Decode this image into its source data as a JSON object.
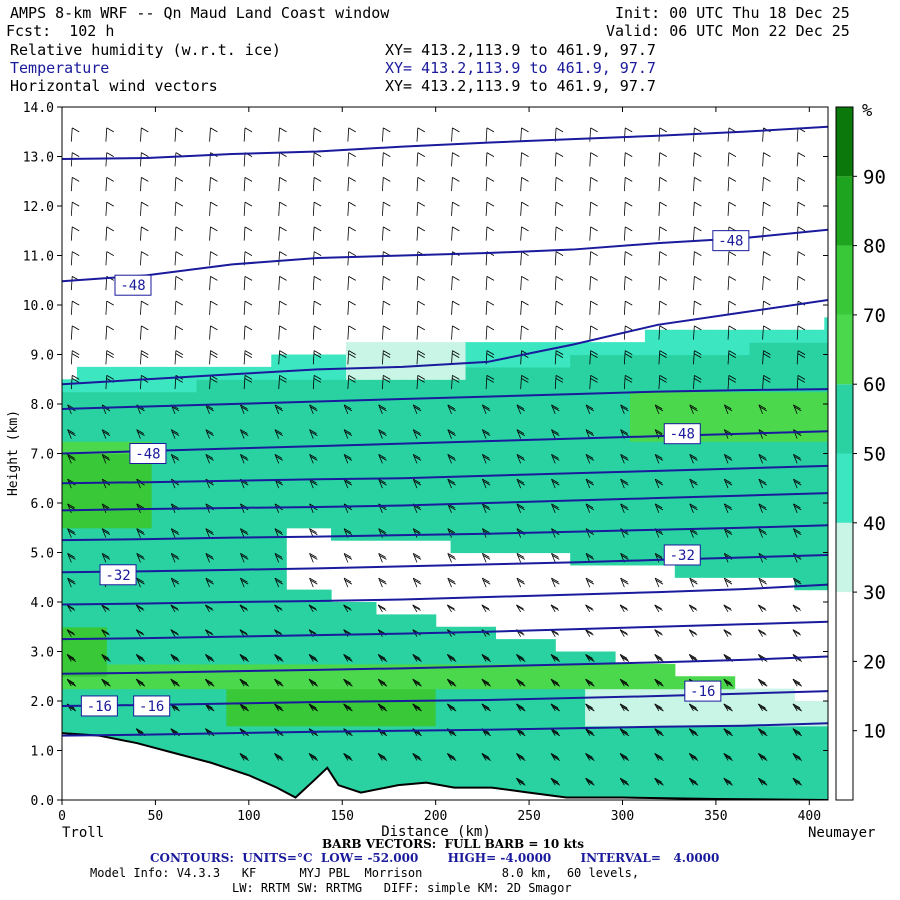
{
  "header": {
    "title": "AMPS 8-km WRF -- Qn Maud Land Coast window",
    "forecast": "Fcst:  102 h",
    "init": "Init: 00 UTC Thu 18 Dec 25",
    "valid": "Valid: 06 UTC Mon 22 Dec 25",
    "field1": "Relative humidity (w.r.t. ice)",
    "field2": "Temperature",
    "field3": "Horizontal wind vectors",
    "xy1": "XY= 413.2,113.9 to 461.9, 97.7",
    "xy2": "XY= 413.2,113.9 to 461.9, 97.7",
    "xy3": "XY= 413.2,113.9 to 461.9, 97.7"
  },
  "footer": {
    "barb": "BARB VECTORS:  FULL BARB = 10 kts",
    "contours": "CONTOURS:  UNITS=°C  LOW= -52.000       HIGH= -4.0000       INTERVAL=   4.0000",
    "model1": "Model Info: V4.3.3   KF      MYJ PBL  Morrison           8.0 km,  60 levels,",
    "model2": "LW: RRTM SW: RRTMG   DIFF: simple KM: 2D Smagor"
  },
  "colors": {
    "contour": "#1a1a9c",
    "rh_scale": [
      "#ffffff",
      "#ffffff",
      "#ffffff",
      "#ffffff",
      "#c8f5e6",
      "#3ce6c0",
      "#2ad2a2",
      "#4cd84c",
      "#38c838",
      "#1ea41e",
      "#0a780a"
    ]
  },
  "chart_data": {
    "type": "heatmap",
    "subtype": "vertical cross-section with contours and wind barbs",
    "xlabel": "Distance (km)",
    "ylabel": "Height (km)",
    "xlim": [
      0,
      410
    ],
    "ylim": [
      0,
      14
    ],
    "x_ticks": [
      "0",
      "50",
      "100",
      "150",
      "200",
      "250",
      "300",
      "350",
      "400"
    ],
    "y_ticks": [
      "0.0",
      "1.0",
      "2.0",
      "3.0",
      "4.0",
      "5.0",
      "6.0",
      "7.0",
      "8.0",
      "9.0",
      "10.0",
      "11.0",
      "12.0",
      "13.0",
      "14.0"
    ],
    "x_end_labels": {
      "left": "Troll",
      "right": "Neumayer"
    },
    "colorbar": {
      "unit": "%",
      "tick_labels": [
        "10",
        "20",
        "30",
        "40",
        "50",
        "60",
        "70",
        "80",
        "90"
      ]
    },
    "contour_labels": [
      {
        "text": "-48",
        "x": 38,
        "y": 10.4
      },
      {
        "text": "-48",
        "x": 358,
        "y": 11.3
      },
      {
        "text": "-48",
        "x": 46,
        "y": 7.0
      },
      {
        "text": "-48",
        "x": 332,
        "y": 7.4
      },
      {
        "text": "-32",
        "x": 30,
        "y": 4.55
      },
      {
        "text": "-32",
        "x": 332,
        "y": 4.95
      },
      {
        "text": "-16",
        "x": 343,
        "y": 2.2
      },
      {
        "text": "-16",
        "x": 20,
        "y": 1.9
      },
      {
        "text": "-16",
        "x": 48,
        "y": 1.9
      }
    ],
    "terrain": [
      [
        0,
        1.35
      ],
      [
        20,
        1.3
      ],
      [
        40,
        1.15
      ],
      [
        60,
        0.95
      ],
      [
        80,
        0.75
      ],
      [
        100,
        0.5
      ],
      [
        115,
        0.25
      ],
      [
        125,
        0.05
      ],
      [
        135,
        0.4
      ],
      [
        142,
        0.65
      ],
      [
        148,
        0.3
      ],
      [
        160,
        0.15
      ],
      [
        180,
        0.3
      ],
      [
        195,
        0.35
      ],
      [
        210,
        0.25
      ],
      [
        230,
        0.25
      ],
      [
        250,
        0.15
      ],
      [
        270,
        0.05
      ],
      [
        300,
        0.05
      ],
      [
        350,
        0.02
      ],
      [
        410,
        0.0
      ]
    ],
    "isotherms_km": [
      [
        12.95,
        12.97,
        13.05,
        13.1,
        13.2,
        13.28,
        13.35,
        13.42,
        13.5,
        13.6
      ],
      [
        10.48,
        10.6,
        10.82,
        10.95,
        11.0,
        11.05,
        11.12,
        11.25,
        11.35,
        11.52
      ],
      [
        8.4,
        8.5,
        8.6,
        8.7,
        8.75,
        8.85,
        9.2,
        9.6,
        9.85,
        10.1
      ],
      [
        7.9,
        7.95,
        8.0,
        8.05,
        8.1,
        8.15,
        8.2,
        8.25,
        8.28,
        8.3
      ],
      [
        7.0,
        7.05,
        7.1,
        7.15,
        7.2,
        7.25,
        7.3,
        7.35,
        7.4,
        7.45
      ],
      [
        6.4,
        6.42,
        6.45,
        6.48,
        6.5,
        6.55,
        6.6,
        6.65,
        6.7,
        6.75
      ],
      [
        5.85,
        5.88,
        5.9,
        5.92,
        5.95,
        6.0,
        6.05,
        6.1,
        6.15,
        6.2
      ],
      [
        5.25,
        5.27,
        5.3,
        5.32,
        5.35,
        5.38,
        5.42,
        5.46,
        5.5,
        5.55
      ],
      [
        4.6,
        4.62,
        4.65,
        4.68,
        4.72,
        4.76,
        4.8,
        4.85,
        4.9,
        4.95
      ],
      [
        3.95,
        3.97,
        4.0,
        4.02,
        4.05,
        4.1,
        4.15,
        4.2,
        4.26,
        4.35
      ],
      [
        3.25,
        3.27,
        3.3,
        3.33,
        3.36,
        3.4,
        3.45,
        3.5,
        3.55,
        3.6
      ],
      [
        2.55,
        2.57,
        2.6,
        2.63,
        2.66,
        2.7,
        2.74,
        2.78,
        2.83,
        2.9
      ],
      [
        1.9,
        1.92,
        1.95,
        1.98,
        2.0,
        2.02,
        2.06,
        2.1,
        2.15,
        2.2
      ],
      [
        1.3,
        1.32,
        1.35,
        1.38,
        1.4,
        1.42,
        1.45,
        1.48,
        1.5,
        1.55
      ]
    ]
  }
}
